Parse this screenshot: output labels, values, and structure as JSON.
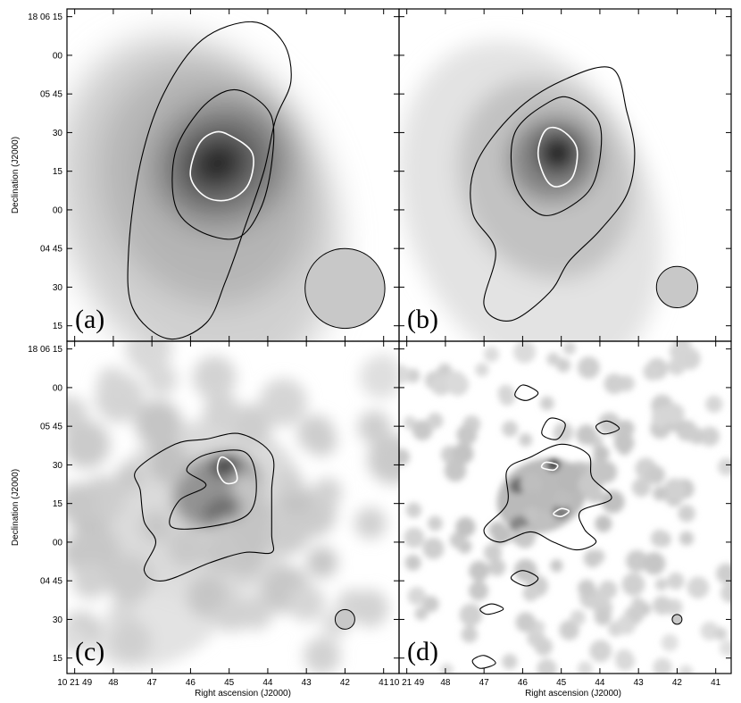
{
  "chart_data": {
    "type": "heatmap",
    "title": "",
    "xlabel": "Right ascension (J2000)",
    "ylabel": "Declination (J2000)",
    "x_ticks": [
      "10 21 49",
      "48",
      "47",
      "46",
      "45",
      "44",
      "43",
      "42",
      "41"
    ],
    "y_ticks": [
      "18 06 15",
      "00",
      "05 45",
      "30",
      "15",
      "00",
      "04 45",
      "30",
      "15"
    ],
    "x_tick_values_s": [
      49,
      48,
      47,
      46,
      45,
      44,
      43,
      42,
      41
    ],
    "y_tick_values_s": [
      375,
      360,
      345,
      330,
      315,
      300,
      285,
      270,
      255
    ],
    "xlim_s": [
      49.2,
      40.6
    ],
    "ylim_s": [
      249,
      378
    ],
    "colormap": "greyscale",
    "panels": [
      {
        "label": "(a)",
        "beam": {
          "ra_s": 42.0,
          "dec_s": 269.5,
          "radius_arcsec": 15.5
        },
        "peak": {
          "ra_s": 45.1,
          "dec_s": 317
        },
        "contours": [
          {
            "color": "black",
            "points": [
              [
                44.4,
                373
              ],
              [
                43.6,
                365
              ],
              [
                43.4,
                350
              ],
              [
                43.8,
                335
              ],
              [
                44.1,
                315
              ],
              [
                44.6,
                293
              ],
              [
                45.1,
                272
              ],
              [
                45.6,
                256
              ],
              [
                46.6,
                250
              ],
              [
                47.5,
                262
              ],
              [
                47.6,
                285
              ],
              [
                47.3,
                318
              ],
              [
                46.7,
                345
              ],
              [
                45.7,
                366
              ]
            ]
          },
          {
            "color": "black",
            "points": [
              [
                44.5,
                345
              ],
              [
                43.9,
                336
              ],
              [
                43.9,
                318
              ],
              [
                44.2,
                300
              ],
              [
                44.8,
                289
              ],
              [
                45.8,
                292
              ],
              [
                46.4,
                302
              ],
              [
                46.4,
                322
              ],
              [
                45.8,
                338
              ],
              [
                45.1,
                346
              ]
            ]
          },
          {
            "color": "white",
            "points": [
              [
                45.0,
                329
              ],
              [
                44.4,
                322
              ],
              [
                44.5,
                310
              ],
              [
                45.0,
                304
              ],
              [
                45.6,
                305
              ],
              [
                46.0,
                313
              ],
              [
                45.8,
                325
              ],
              [
                45.4,
                330
              ]
            ]
          }
        ],
        "blobs": [
          {
            "ra_s": 45.3,
            "dec_s": 318,
            "rx": 0.9,
            "ry": 11,
            "intensity": 1.0
          },
          {
            "ra_s": 45.2,
            "dec_s": 318,
            "rx": 1.8,
            "ry": 24,
            "intensity": 0.55
          },
          {
            "ra_s": 45.6,
            "dec_s": 310,
            "rx": 2.7,
            "ry": 48,
            "intensity": 0.3
          },
          {
            "ra_s": 45.8,
            "dec_s": 300,
            "rx": 3.5,
            "ry": 70,
            "intensity": 0.2
          }
        ]
      },
      {
        "label": "(b)",
        "beam": {
          "ra_s": 42.0,
          "dec_s": 270,
          "radius_arcsec": 8
        },
        "peak": {
          "ra_s": 45.1,
          "dec_s": 322
        },
        "contours": [
          {
            "color": "black",
            "points": [
              [
                43.7,
                355
              ],
              [
                43.3,
                338
              ],
              [
                43.1,
                322
              ],
              [
                43.3,
                306
              ],
              [
                44.0,
                292
              ],
              [
                44.8,
                280
              ],
              [
                45.3,
                268
              ],
              [
                46.3,
                257
              ],
              [
                47.0,
                263
              ],
              [
                46.7,
                284
              ],
              [
                47.3,
                299
              ],
              [
                47.2,
                318
              ],
              [
                46.2,
                338
              ],
              [
                45.0,
                350
              ]
            ]
          },
          {
            "color": "black",
            "points": [
              [
                44.7,
                343
              ],
              [
                44.0,
                333
              ],
              [
                44.1,
                313
              ],
              [
                44.6,
                303
              ],
              [
                45.5,
                298
              ],
              [
                46.2,
                310
              ],
              [
                46.2,
                330
              ],
              [
                45.3,
                342
              ]
            ]
          },
          {
            "color": "white",
            "points": [
              [
                45.0,
                331
              ],
              [
                44.6,
                324
              ],
              [
                44.7,
                313
              ],
              [
                45.1,
                309
              ],
              [
                45.4,
                312
              ],
              [
                45.6,
                322
              ],
              [
                45.4,
                331
              ]
            ]
          }
        ],
        "blobs": [
          {
            "ra_s": 45.1,
            "dec_s": 322,
            "rx": 0.55,
            "ry": 8,
            "intensity": 1.0
          },
          {
            "ra_s": 45.2,
            "dec_s": 320,
            "rx": 1.2,
            "ry": 17,
            "intensity": 0.5
          },
          {
            "ra_s": 45.4,
            "dec_s": 312,
            "rx": 2.2,
            "ry": 40,
            "intensity": 0.25
          },
          {
            "ra_s": 45.8,
            "dec_s": 300,
            "rx": 3.2,
            "ry": 68,
            "intensity": 0.12
          }
        ]
      },
      {
        "label": "(c)",
        "beam": {
          "ra_s": 42.0,
          "dec_s": 270,
          "radius_arcsec": 3.8
        },
        "peak": {
          "ra_s": 45.1,
          "dec_s": 330
        },
        "contours": [
          {
            "color": "black",
            "points": [
              [
                44.7,
                342
              ],
              [
                43.9,
                334
              ],
              [
                43.9,
                320
              ],
              [
                43.9,
                303
              ],
              [
                43.9,
                296
              ],
              [
                44.6,
                296
              ],
              [
                45.5,
                292
              ],
              [
                46.7,
                285
              ],
              [
                47.2,
                289
              ],
              [
                46.9,
                300
              ],
              [
                47.2,
                308
              ],
              [
                47.3,
                320
              ],
              [
                47.4,
                328
              ],
              [
                46.4,
                338
              ],
              [
                45.6,
                340
              ]
            ]
          },
          {
            "color": "black",
            "points": [
              [
                45.6,
                334
              ],
              [
                44.6,
                335
              ],
              [
                44.3,
                324
              ],
              [
                44.5,
                311
              ],
              [
                45.5,
                306
              ],
              [
                46.5,
                306
              ],
              [
                46.3,
                316
              ],
              [
                45.6,
                322
              ],
              [
                46.1,
                328
              ]
            ]
          },
          {
            "color": "white",
            "points": [
              [
                45.2,
                333
              ],
              [
                44.9,
                330
              ],
              [
                44.8,
                324
              ],
              [
                45.1,
                323
              ],
              [
                45.3,
                328
              ]
            ]
          }
        ],
        "blobs": [
          {
            "ra_s": 45.1,
            "dec_s": 330,
            "rx": 0.4,
            "ry": 4,
            "intensity": 0.85
          },
          {
            "ra_s": 45.2,
            "dec_s": 312,
            "rx": 0.5,
            "ry": 5,
            "intensity": 0.6
          },
          {
            "ra_s": 45.3,
            "dec_s": 320,
            "rx": 1.2,
            "ry": 14,
            "intensity": 0.45
          },
          {
            "ra_s": 45.6,
            "dec_s": 312,
            "rx": 2.6,
            "ry": 35,
            "intensity": 0.16
          },
          {
            "ra_s": 46.8,
            "dec_s": 268,
            "rx": 1.8,
            "ry": 15,
            "intensity": 0.12
          }
        ]
      },
      {
        "label": "(d)",
        "beam": {
          "ra_s": 42.0,
          "dec_s": 270,
          "radius_arcsec": 1.9
        },
        "peak": {
          "ra_s": 45.2,
          "dec_s": 330
        },
        "contours": [
          {
            "color": "black",
            "points": [
              [
                45.0,
                338
              ],
              [
                44.3,
                334
              ],
              [
                44.2,
                325
              ],
              [
                43.7,
                317
              ],
              [
                44.5,
                312
              ],
              [
                44.4,
                305
              ],
              [
                44.1,
                300
              ],
              [
                44.6,
                297
              ],
              [
                45.2,
                300
              ],
              [
                45.8,
                304
              ],
              [
                46.6,
                300
              ],
              [
                47.0,
                305
              ],
              [
                46.4,
                315
              ],
              [
                46.4,
                328
              ],
              [
                45.8,
                333
              ]
            ]
          },
          {
            "color": "black",
            "points": [
              [
                45.3,
                348
              ],
              [
                44.9,
                346
              ],
              [
                45.1,
                340
              ],
              [
                45.5,
                342
              ]
            ]
          },
          {
            "color": "black",
            "points": [
              [
                46.0,
                361
              ],
              [
                45.6,
                358
              ],
              [
                45.9,
                355
              ],
              [
                46.2,
                357
              ]
            ]
          },
          {
            "color": "black",
            "points": [
              [
                43.8,
                347
              ],
              [
                43.5,
                344
              ],
              [
                43.9,
                342
              ],
              [
                44.1,
                345
              ]
            ]
          },
          {
            "color": "black",
            "points": [
              [
                46.0,
                289
              ],
              [
                45.6,
                286
              ],
              [
                45.9,
                283
              ],
              [
                46.3,
                286
              ]
            ]
          },
          {
            "color": "black",
            "points": [
              [
                46.8,
                276
              ],
              [
                46.5,
                274
              ],
              [
                46.9,
                272
              ],
              [
                47.1,
                274
              ]
            ]
          },
          {
            "color": "black",
            "points": [
              [
                47.0,
                256
              ],
              [
                46.7,
                253
              ],
              [
                47.1,
                251
              ],
              [
                47.3,
                254
              ]
            ]
          },
          {
            "color": "white",
            "points": [
              [
                45.4,
                331
              ],
              [
                45.1,
                330
              ],
              [
                45.2,
                328
              ],
              [
                45.5,
                329
              ]
            ]
          },
          {
            "color": "white",
            "points": [
              [
                45.0,
                313
              ],
              [
                44.8,
                312
              ],
              [
                45.0,
                310
              ],
              [
                45.2,
                311
              ]
            ]
          }
        ],
        "blobs": [
          {
            "ra_s": 45.2,
            "dec_s": 330,
            "rx": 0.18,
            "ry": 2.5,
            "intensity": 0.75
          },
          {
            "ra_s": 46.1,
            "dec_s": 322,
            "rx": 0.25,
            "ry": 3,
            "intensity": 0.6
          },
          {
            "ra_s": 45.0,
            "dec_s": 312,
            "rx": 0.22,
            "ry": 3,
            "intensity": 0.55
          },
          {
            "ra_s": 46.1,
            "dec_s": 307,
            "rx": 0.25,
            "ry": 3,
            "intensity": 0.5
          },
          {
            "ra_s": 45.5,
            "dec_s": 318,
            "rx": 1.2,
            "ry": 14,
            "intensity": 0.3
          },
          {
            "ra_s": 44.6,
            "dec_s": 325,
            "rx": 0.5,
            "ry": 6,
            "intensity": 0.28
          }
        ]
      }
    ]
  },
  "colors": {
    "background": "#ffffff",
    "contour_dark": "#000000",
    "contour_light": "#ffffff",
    "beam_fill": "#c8c8c8",
    "frame": "#000000"
  }
}
